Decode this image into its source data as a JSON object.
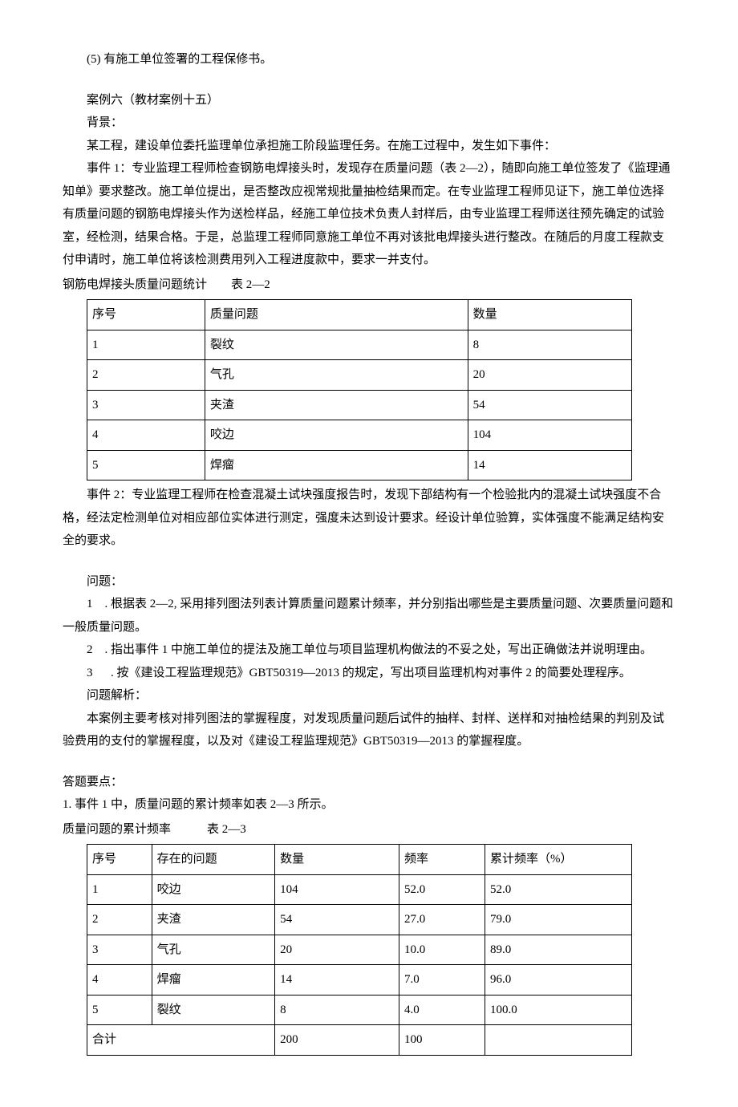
{
  "intro": {
    "item5": "(5) 有施工单位签署的工程保修书。"
  },
  "case": {
    "title": "案例六（教材案例十五）",
    "bg_label": "背景：",
    "bg_p1": "某工程，建设单位委托监理单位承担施工阶段监理任务。在施工过程中，发生如下事件：",
    "event1": "事件 1：专业监理工程师检查钢筋电焊接头时，发现存在质量问题（表 2—2），随即向施工单位签发了《监理通知单》要求整改。施工单位提出，是否整改应视常规批量抽检结果而定。在专业监理工程师见证下，施工单位选择有质量问题的钢筋电焊接头作为送检样品，经施工单位技术负责人封样后，由专业监理工程师送往预先确定的试验室，经检测，结果合格。于是，总监理工程师同意施工单位不再对该批电焊接头进行整改。在随后的月度工程款支付申请时，施工单位将该检测费用列入工程进度款中，要求一并支付。",
    "event2": "事件 2：专业监理工程师在检查混凝土试块强度报告时，发现下部结构有一个检验批内的混凝土试块强度不合格，经法定检测单位对相应部位实体进行测定，强度未达到设计要求。经设计单位验算，实体强度不能满足结构安全的要求。"
  },
  "table1": {
    "caption": "钢筋电焊接头质量问题统计  表 2—2",
    "headers": [
      "序号",
      "质量问题",
      "数量"
    ],
    "rows": [
      [
        "1",
        "裂纹",
        "8"
      ],
      [
        "2",
        "气孔",
        "20"
      ],
      [
        "3",
        "夹渣",
        "54"
      ],
      [
        "4",
        "咬边",
        "104"
      ],
      [
        "5",
        "焊瘤",
        "14"
      ]
    ]
  },
  "questions": {
    "label": "问题：",
    "q1": "1 . 根据表 2—2, 采用排列图法列表计算质量问题累计频率，并分别指出哪些是主要质量问题、次要质量问题和一般质量问题。",
    "q2": "2 . 指出事件 1 中施工单位的提法及施工单位与项目监理机构做法的不妥之处，写出正确做法并说明理由。",
    "q3_num": "3",
    "q3_text": ". 按《建设工程监理规范》GBT50319—2013 的规定，写出项目监理机构对事件 2 的简要处理程序。"
  },
  "analysis": {
    "label": "问题解析：",
    "text": "本案例主要考核对排列图法的掌握程度，对发现质量问题后试件的抽样、封样、送样和对抽检结果的判别及试验费用的支付的掌握程度，以及对《建设工程监理规范》GBT50319—2013 的掌握程度。"
  },
  "answer": {
    "label": "答题要点：",
    "p1": "1. 事件 1 中，质量问题的累计频率如表 2—3 所示。"
  },
  "table2": {
    "caption": "质量问题的累计频率   表 2—3",
    "headers": [
      "序号",
      "存在的问题",
      "数量",
      "频率",
      "累计频率（%）"
    ],
    "rows": [
      [
        "1",
        "咬边",
        "104",
        "52.0",
        "52.0"
      ],
      [
        "2",
        "夹渣",
        "54",
        "27.0",
        "79.0"
      ],
      [
        "3",
        "气孔",
        "20",
        "10.0",
        "89.0"
      ],
      [
        "4",
        "焊瘤",
        "14",
        "7.0",
        "96.0"
      ],
      [
        "5",
        "裂纹",
        "8",
        "4.0",
        "100.0"
      ]
    ],
    "total_label": "合计",
    "total_qty": "200",
    "total_freq": "100"
  }
}
